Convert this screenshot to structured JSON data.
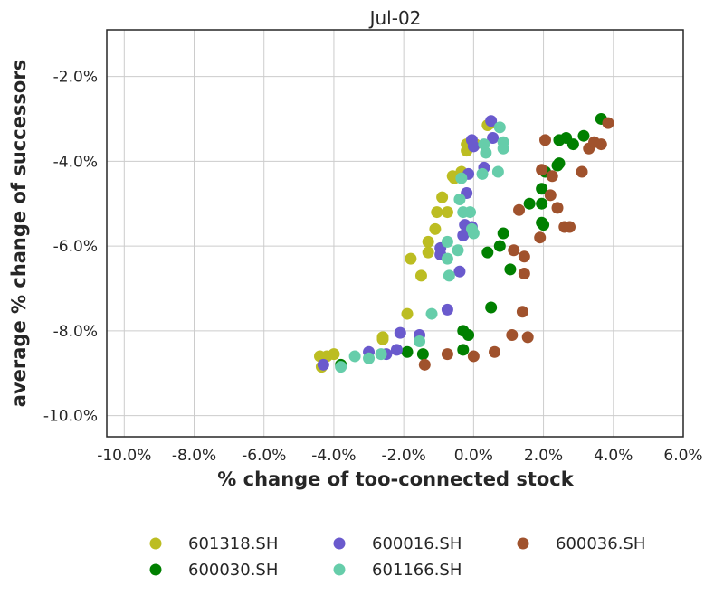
{
  "chart_data": {
    "type": "scatter",
    "title": "Jul-02",
    "xlabel": "% change of too-connected stock",
    "ylabel": "average % change of successors",
    "xlim": [
      -10.5,
      6.0
    ],
    "ylim": [
      -10.5,
      -0.9
    ],
    "xticks": [
      -10,
      -8,
      -6,
      -4,
      -2,
      0,
      2,
      4,
      6
    ],
    "xtick_labels": [
      "-10.0%",
      "-8.0%",
      "-6.0%",
      "-4.0%",
      "-2.0%",
      "0.0%",
      "2.0%",
      "4.0%",
      "6.0%"
    ],
    "yticks": [
      -10,
      -8,
      -6,
      -4,
      -2
    ],
    "ytick_labels": [
      "-10.0%",
      "-8.0%",
      "-6.0%",
      "-4.0%",
      "-2.0%"
    ],
    "grid": true,
    "legend_position": "bottom",
    "series": [
      {
        "name": "601318.SH",
        "color": "#bcbd22",
        "points": [
          [
            -4.4,
            -8.6
          ],
          [
            -4.35,
            -8.85
          ],
          [
            -4.2,
            -8.6
          ],
          [
            -4.0,
            -8.55
          ],
          [
            -2.6,
            -8.15
          ],
          [
            -2.6,
            -8.2
          ],
          [
            -1.9,
            -7.6
          ],
          [
            -1.8,
            -6.3
          ],
          [
            -1.5,
            -6.7
          ],
          [
            -1.3,
            -6.15
          ],
          [
            -1.3,
            -5.9
          ],
          [
            -1.1,
            -5.6
          ],
          [
            -1.05,
            -5.2
          ],
          [
            -0.9,
            -4.85
          ],
          [
            -0.75,
            -5.2
          ],
          [
            -0.6,
            -4.35
          ],
          [
            -0.55,
            -4.4
          ],
          [
            -0.35,
            -4.25
          ],
          [
            -0.2,
            -3.75
          ],
          [
            -0.2,
            -3.6
          ],
          [
            -0.1,
            -3.65
          ],
          [
            0.05,
            -3.6
          ],
          [
            0.4,
            -3.15
          ],
          [
            0.5,
            -3.1
          ]
        ]
      },
      {
        "name": "600030.SH",
        "color": "#008000",
        "points": [
          [
            -3.8,
            -8.8
          ],
          [
            -1.9,
            -8.5
          ],
          [
            -1.45,
            -8.55
          ],
          [
            -0.3,
            -8.0
          ],
          [
            -0.3,
            -8.45
          ],
          [
            -0.15,
            -8.1
          ],
          [
            0.4,
            -6.15
          ],
          [
            0.5,
            -7.45
          ],
          [
            0.75,
            -6.0
          ],
          [
            0.85,
            -5.7
          ],
          [
            1.05,
            -6.55
          ],
          [
            1.6,
            -5.0
          ],
          [
            1.95,
            -5.45
          ],
          [
            2.0,
            -5.5
          ],
          [
            1.95,
            -5.0
          ],
          [
            1.95,
            -4.65
          ],
          [
            2.05,
            -4.25
          ],
          [
            2.4,
            -4.1
          ],
          [
            2.45,
            -4.05
          ],
          [
            2.45,
            -3.5
          ],
          [
            2.65,
            -3.45
          ],
          [
            2.85,
            -3.6
          ],
          [
            3.15,
            -3.4
          ],
          [
            3.65,
            -3.0
          ]
        ]
      },
      {
        "name": "600016.SH",
        "color": "#6a5acd",
        "points": [
          [
            -4.3,
            -8.8
          ],
          [
            -3.0,
            -8.5
          ],
          [
            -2.5,
            -8.55
          ],
          [
            -2.2,
            -8.45
          ],
          [
            -2.1,
            -8.05
          ],
          [
            -1.55,
            -8.1
          ],
          [
            -0.95,
            -6.05
          ],
          [
            -0.95,
            -6.2
          ],
          [
            -0.75,
            -7.5
          ],
          [
            -0.4,
            -6.6
          ],
          [
            -0.3,
            -5.75
          ],
          [
            -0.25,
            -5.5
          ],
          [
            -0.2,
            -4.75
          ],
          [
            -0.15,
            -4.3
          ],
          [
            -0.05,
            -3.5
          ],
          [
            -0.05,
            -5.55
          ],
          [
            0.0,
            -3.65
          ],
          [
            0.3,
            -4.15
          ],
          [
            0.5,
            -3.05
          ],
          [
            0.55,
            -3.45
          ]
        ]
      },
      {
        "name": "601166.SH",
        "color": "#66cdaa",
        "points": [
          [
            -3.8,
            -8.85
          ],
          [
            -3.4,
            -8.6
          ],
          [
            -3.0,
            -8.65
          ],
          [
            -2.65,
            -8.55
          ],
          [
            -1.55,
            -8.25
          ],
          [
            -1.2,
            -7.6
          ],
          [
            -0.75,
            -5.9
          ],
          [
            -0.75,
            -6.3
          ],
          [
            -0.7,
            -6.7
          ],
          [
            -0.45,
            -6.1
          ],
          [
            -0.4,
            -4.9
          ],
          [
            -0.35,
            -4.4
          ],
          [
            -0.3,
            -5.2
          ],
          [
            -0.1,
            -5.2
          ],
          [
            -0.05,
            -5.6
          ],
          [
            0.0,
            -5.7
          ],
          [
            0.25,
            -4.3
          ],
          [
            0.3,
            -3.6
          ],
          [
            0.35,
            -3.8
          ],
          [
            0.7,
            -4.25
          ],
          [
            0.75,
            -3.2
          ],
          [
            0.85,
            -3.55
          ],
          [
            0.85,
            -3.7
          ]
        ]
      },
      {
        "name": "600036.SH",
        "color": "#a0522d",
        "points": [
          [
            -1.4,
            -8.8
          ],
          [
            -0.75,
            -8.55
          ],
          [
            0.0,
            -8.6
          ],
          [
            0.6,
            -8.5
          ],
          [
            1.1,
            -8.1
          ],
          [
            1.15,
            -6.1
          ],
          [
            1.3,
            -5.15
          ],
          [
            1.4,
            -7.55
          ],
          [
            1.45,
            -6.25
          ],
          [
            1.45,
            -6.65
          ],
          [
            1.55,
            -8.15
          ],
          [
            1.9,
            -5.8
          ],
          [
            1.95,
            -4.2
          ],
          [
            2.05,
            -3.5
          ],
          [
            2.2,
            -4.8
          ],
          [
            2.25,
            -4.35
          ],
          [
            2.4,
            -5.1
          ],
          [
            2.6,
            -5.55
          ],
          [
            2.75,
            -5.55
          ],
          [
            3.1,
            -4.25
          ],
          [
            3.3,
            -3.7
          ],
          [
            3.45,
            -3.55
          ],
          [
            3.65,
            -3.6
          ],
          [
            3.85,
            -3.1
          ]
        ]
      }
    ]
  }
}
